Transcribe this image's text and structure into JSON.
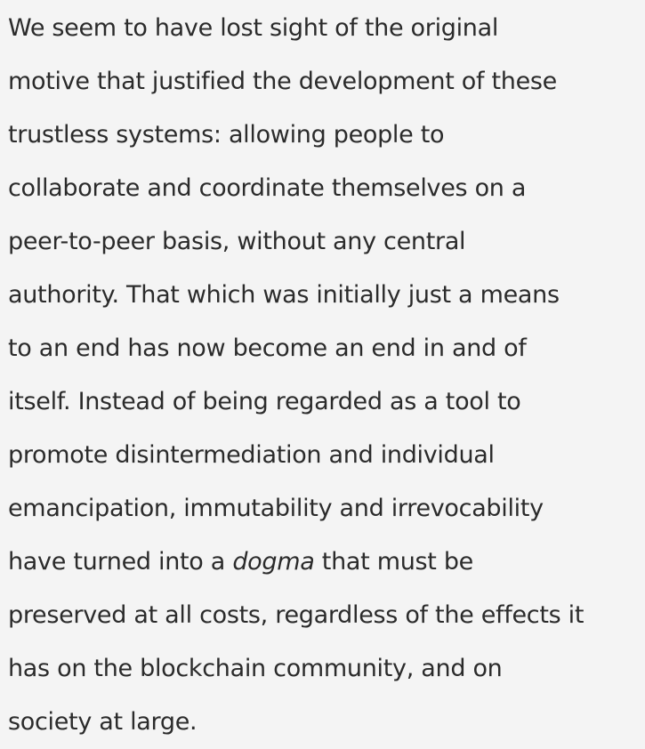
{
  "paragraph": {
    "lines": [
      "We seem to have lost sight of the original",
      "motive that justified the development of these",
      "trustless systems: allowing people to",
      "collaborate and coordinate themselves on a",
      "peer-to-peer basis, without any central",
      "authority. That which was initially just a means",
      "to an end has now become an end in and of",
      "itself. Instead of being regarded as a tool to",
      "promote disintermediation and individual",
      "emancipation, immutability and irrevocability",
      "have turned into a ",
      "dogma",
      " that must be",
      "preserved at all costs, regardless of the effects it",
      "has on the blockchain community, and on",
      "society at large."
    ]
  }
}
